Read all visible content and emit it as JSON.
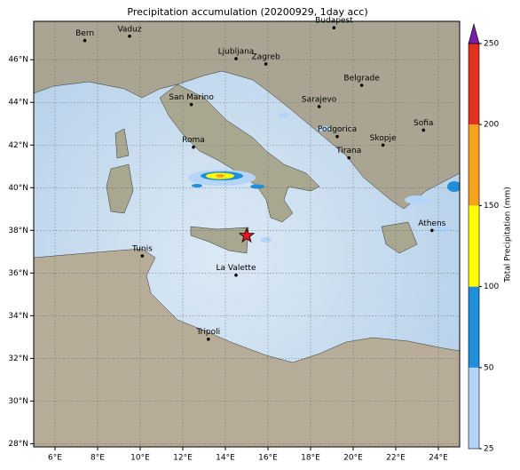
{
  "chart_data": {
    "type": "map",
    "title": "Precipitation accumulation (20200929, 1day acc)",
    "xlim": [
      5,
      25
    ],
    "ylim": [
      27.85,
      47.8
    ],
    "xticks": [
      {
        "value": 6,
        "label": "6°E"
      },
      {
        "value": 8,
        "label": "8°E"
      },
      {
        "value": 10,
        "label": "10°E"
      },
      {
        "value": 12,
        "label": "12°E"
      },
      {
        "value": 14,
        "label": "14°E"
      },
      {
        "value": 16,
        "label": "16°E"
      },
      {
        "value": 18,
        "label": "18°E"
      },
      {
        "value": 20,
        "label": "20°E"
      },
      {
        "value": 22,
        "label": "22°E"
      },
      {
        "value": 24,
        "label": "24°E"
      }
    ],
    "yticks": [
      {
        "value": 28,
        "label": "28°N"
      },
      {
        "value": 30,
        "label": "30°N"
      },
      {
        "value": 32,
        "label": "32°N"
      },
      {
        "value": 34,
        "label": "34°N"
      },
      {
        "value": 36,
        "label": "36°N"
      },
      {
        "value": 38,
        "label": "38°N"
      },
      {
        "value": 40,
        "label": "40°N"
      },
      {
        "value": 42,
        "label": "42°N"
      },
      {
        "value": 44,
        "label": "44°N"
      },
      {
        "value": 46,
        "label": "46°N"
      }
    ],
    "grid": true,
    "cities": [
      {
        "name": "Bern",
        "lon": 7.4,
        "lat": 46.9
      },
      {
        "name": "Vaduz",
        "lon": 9.5,
        "lat": 47.1
      },
      {
        "name": "Ljubljana",
        "lon": 14.5,
        "lat": 46.05
      },
      {
        "name": "Zagreb",
        "lon": 15.9,
        "lat": 45.8
      },
      {
        "name": "Budapest",
        "lon": 19.1,
        "lat": 47.5
      },
      {
        "name": "Belgrade",
        "lon": 20.4,
        "lat": 44.8
      },
      {
        "name": "San Marino",
        "lon": 12.4,
        "lat": 43.9
      },
      {
        "name": "Sarajevo",
        "lon": 18.4,
        "lat": 43.8
      },
      {
        "name": "Roma",
        "lon": 12.5,
        "lat": 41.9
      },
      {
        "name": "Podgorica",
        "lon": 19.25,
        "lat": 42.4
      },
      {
        "name": "Skopje",
        "lon": 21.4,
        "lat": 42.0
      },
      {
        "name": "Sofia",
        "lon": 23.3,
        "lat": 42.7
      },
      {
        "name": "Tirana",
        "lon": 19.8,
        "lat": 41.4
      },
      {
        "name": "Athens",
        "lon": 23.7,
        "lat": 38.0
      },
      {
        "name": "Tunis",
        "lon": 10.1,
        "lat": 36.8
      },
      {
        "name": "La Valette",
        "lon": 14.5,
        "lat": 35.9
      },
      {
        "name": "Tripoli",
        "lon": 13.2,
        "lat": 32.9
      }
    ],
    "marker": {
      "lon": 15.0,
      "lat": 37.75,
      "color": "#e8141e"
    },
    "colorbar": {
      "label": "Total Precipitation (mm)",
      "boundaries": [
        25,
        50,
        100,
        150,
        200,
        250
      ],
      "colors": [
        "#b4d4f8",
        "#1e8fd8",
        "#ffff00",
        "#f5a21e",
        "#e0301e"
      ],
      "extend_color": "#7a1ea8"
    }
  }
}
